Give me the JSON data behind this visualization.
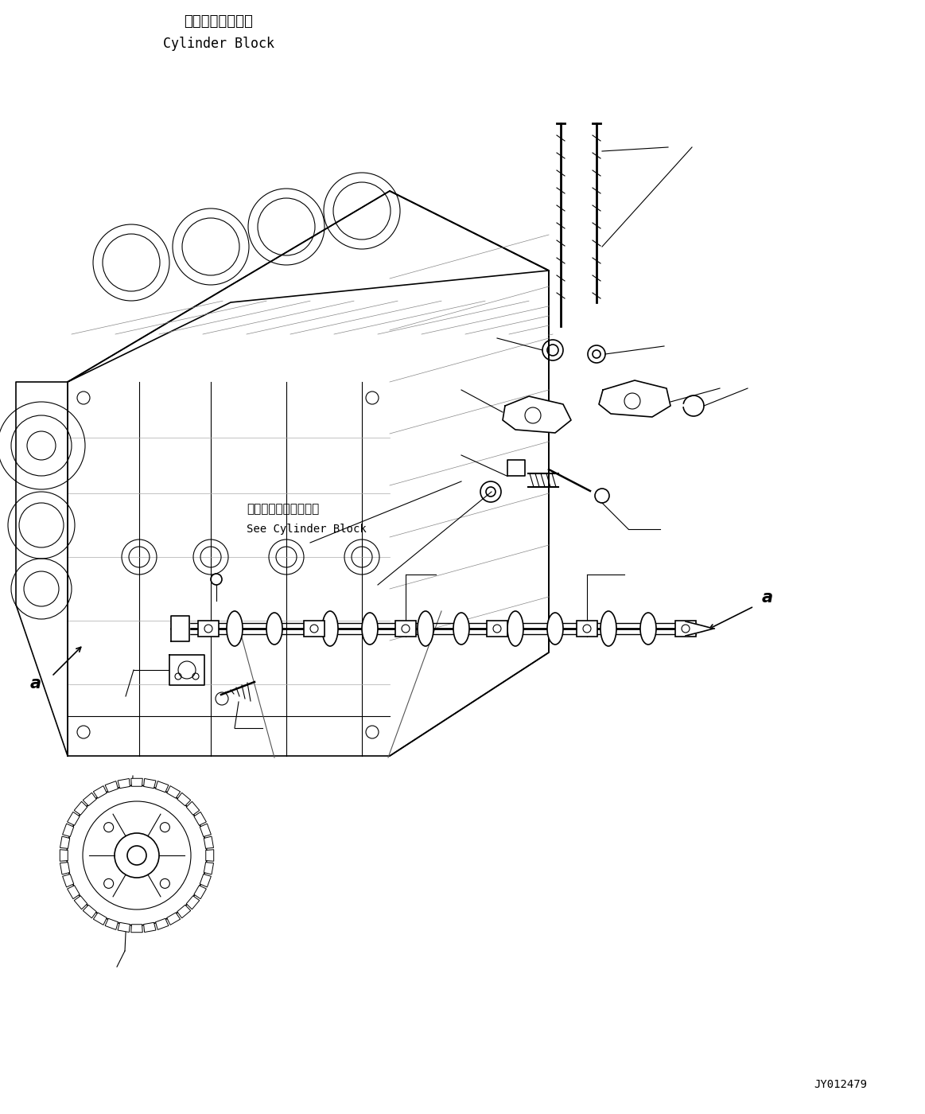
{
  "bg_color": "#ffffff",
  "line_color": "#000000",
  "text_color": "#000000",
  "label_top_japanese": "シリンダブロック",
  "label_top_english": "Cylinder Block",
  "label_see_japanese": "シリンダブロック参照",
  "label_see_english": "See Cylinder Block",
  "label_code": "JY012479",
  "label_a1": "a",
  "label_a2": "a"
}
